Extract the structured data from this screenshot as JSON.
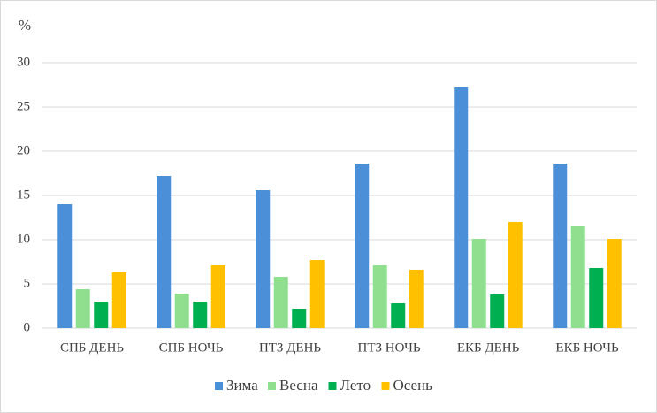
{
  "chart_data": {
    "type": "bar",
    "y_label": "%",
    "categories": [
      "СПБ ДЕНЬ",
      "СПБ НОЧЬ",
      "ПТЗ ДЕНЬ",
      "ПТЗ НОЧЬ",
      "ЕКБ ДЕНЬ",
      "ЕКБ НОЧЬ"
    ],
    "series": [
      {
        "name": "Зима",
        "color": "#4a8fd8",
        "values": [
          14.0,
          17.2,
          15.6,
          18.6,
          27.3,
          18.6
        ]
      },
      {
        "name": "Весна",
        "color": "#8fdf8f",
        "values": [
          4.4,
          3.9,
          5.8,
          7.1,
          10.1,
          11.5
        ]
      },
      {
        "name": "Лето",
        "color": "#00b050",
        "values": [
          3.0,
          3.0,
          2.2,
          2.8,
          3.8,
          6.8
        ]
      },
      {
        "name": "Осень",
        "color": "#ffc000",
        "values": [
          6.3,
          7.1,
          7.7,
          6.6,
          12.0,
          10.1
        ]
      }
    ],
    "ylim": [
      0,
      30
    ],
    "yticks": [
      0,
      5,
      10,
      15,
      20,
      25,
      30
    ],
    "grid": true,
    "legend": "bottom"
  }
}
